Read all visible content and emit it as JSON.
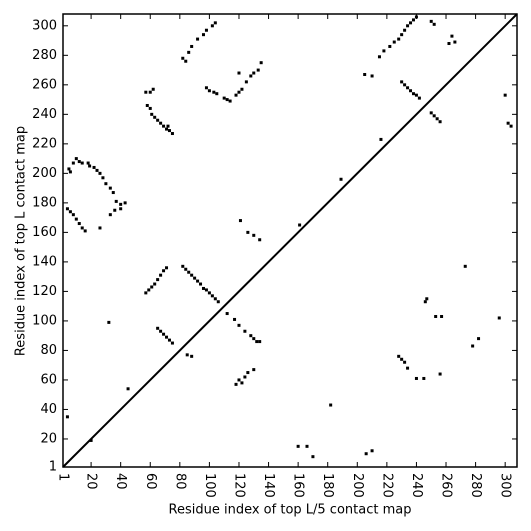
{
  "chart_data": {
    "type": "scatter",
    "xlabel": "Residue index of top L/5 contact map",
    "ylabel": "Residue index of top L contact map",
    "color": "#000000",
    "xlim": [
      1,
      308
    ],
    "ylim": [
      1,
      308
    ],
    "xticks": [
      1,
      20,
      40,
      60,
      80,
      100,
      120,
      140,
      160,
      180,
      200,
      220,
      240,
      260,
      280,
      300
    ],
    "yticks": [
      1,
      20,
      40,
      60,
      80,
      100,
      120,
      140,
      160,
      180,
      200,
      220,
      240,
      260,
      280,
      300
    ],
    "x": [
      4,
      6,
      8,
      10,
      12,
      14,
      16,
      5,
      6,
      8,
      10,
      12,
      14,
      18,
      19,
      22,
      24,
      26,
      28,
      30,
      33,
      35,
      37,
      40,
      43,
      36,
      33,
      40,
      26,
      57,
      60,
      62,
      58,
      60,
      61,
      63,
      65,
      67,
      69,
      71,
      73,
      75,
      72,
      82,
      84,
      86,
      88,
      92,
      96,
      98,
      102,
      104,
      98,
      100,
      103,
      105,
      110,
      112,
      114,
      118,
      120,
      122,
      125,
      128,
      130,
      133,
      135,
      120,
      205,
      210,
      215,
      218,
      222,
      225,
      228,
      230,
      232,
      234,
      236,
      238,
      240,
      230,
      232,
      234,
      236,
      238,
      240,
      242,
      250,
      252,
      264,
      266,
      250,
      252,
      254,
      256,
      216,
      300,
      302,
      304,
      262,
      189,
      20,
      4,
      45,
      32,
      57,
      59,
      61,
      63,
      65,
      67,
      69,
      71,
      65,
      67,
      69,
      71,
      73,
      75,
      82,
      84,
      86,
      88,
      90,
      92,
      94,
      96,
      98,
      100,
      102,
      104,
      106,
      85,
      88,
      112,
      117,
      120,
      124,
      128,
      130,
      132,
      134,
      120,
      122,
      124,
      126,
      118,
      130,
      121,
      126,
      130,
      134,
      161,
      160,
      166,
      170,
      182,
      206,
      210,
      228,
      230,
      232,
      234,
      240,
      245,
      253,
      257,
      256,
      246,
      247,
      273,
      278,
      282,
      296
    ],
    "y": [
      176,
      174,
      172,
      169,
      166,
      163,
      161,
      203,
      201,
      207,
      210,
      208,
      207,
      207,
      205,
      204,
      202,
      200,
      197,
      193,
      190,
      187,
      181,
      179,
      180,
      175,
      172,
      176,
      163,
      255,
      255,
      257,
      246,
      244,
      240,
      238,
      236,
      234,
      232,
      230,
      229,
      227,
      232,
      278,
      276,
      282,
      286,
      291,
      294,
      297,
      300,
      302,
      258,
      256,
      255,
      254,
      251,
      250,
      249,
      253,
      255,
      257,
      262,
      266,
      268,
      270,
      275,
      268,
      267,
      266,
      279,
      283,
      286,
      289,
      291,
      294,
      297,
      300,
      302,
      304,
      306,
      262,
      260,
      258,
      256,
      254,
      253,
      251,
      303,
      301,
      293,
      289,
      241,
      239,
      237,
      235,
      223,
      253,
      234,
      232,
      288,
      196,
      19,
      35,
      54,
      99,
      119,
      121,
      123,
      125,
      128,
      131,
      134,
      136,
      95,
      93,
      91,
      89,
      87,
      85,
      137,
      135,
      133,
      131,
      129,
      127,
      125,
      122,
      121,
      119,
      117,
      115,
      113,
      77,
      76,
      105,
      101,
      97,
      93,
      90,
      88,
      86,
      86,
      60,
      58,
      62,
      65,
      57,
      67,
      168,
      160,
      158,
      155,
      165,
      15,
      15,
      8,
      43,
      10,
      12,
      76,
      74,
      72,
      68,
      61,
      61,
      103,
      103,
      64,
      113,
      115,
      137,
      83,
      88,
      102
    ]
  }
}
